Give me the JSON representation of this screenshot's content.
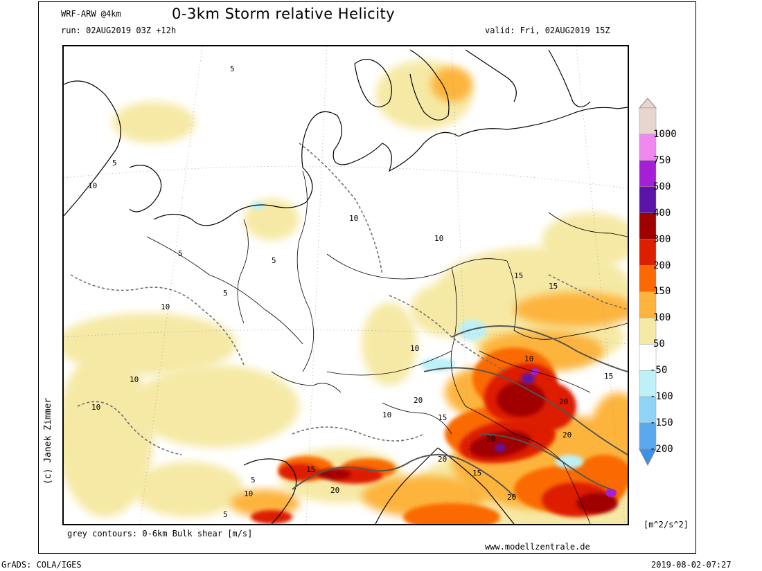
{
  "header": {
    "model": "WRF-ARW @4km",
    "title": "0-3km Storm relative Helicity",
    "run": "run: 02AUG2019 03Z +12h",
    "valid": "valid: Fri, 02AUG2019 15Z"
  },
  "credit": "(c) Janek Zimmer",
  "footer": {
    "note": "grey contours: 0-6km Bulk shear [m/s]",
    "website": "www.modellzentrale.de",
    "grads": "GrADS: COLA/IGES",
    "timestamp": "2019-08-02-07:27"
  },
  "legend": {
    "units": "[m^2/s^2]",
    "levels": [
      {
        "label": "1000",
        "color": "#e7d6d0"
      },
      {
        "label": "750",
        "color": "#ef89f0"
      },
      {
        "label": "500",
        "color": "#a51fd4"
      },
      {
        "label": "400",
        "color": "#5b13a8"
      },
      {
        "label": "300",
        "color": "#a00000"
      },
      {
        "label": "200",
        "color": "#dd1e00"
      },
      {
        "label": "150",
        "color": "#fa6a00"
      },
      {
        "label": "100",
        "color": "#fdb43c"
      },
      {
        "label": "50",
        "color": "#f6e9a5"
      },
      {
        "label": "-50",
        "color": "#ffffff"
      },
      {
        "label": "-100",
        "color": "#bdf0f7"
      },
      {
        "label": "-150",
        "color": "#8fd3f7"
      },
      {
        "label": "-200",
        "color": "#5aa9ef"
      }
    ],
    "bottom_color": "#3e8fe6"
  },
  "contour_labels": [
    "5",
    "10",
    "15",
    "20"
  ]
}
